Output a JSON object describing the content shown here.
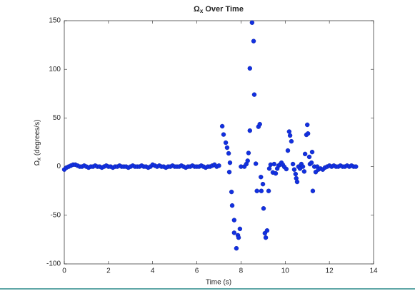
{
  "chart_data": {
    "type": "scatter",
    "title": {
      "symbol": "Ω",
      "sub": "x",
      "rest": " Over Time"
    },
    "xlabel": "Time (s)",
    "ylabel": {
      "symbol": "Ω",
      "sub": "x",
      "rest": " (degrees/s)"
    },
    "xlim": [
      0,
      14
    ],
    "xticks": [
      0,
      2,
      4,
      6,
      8,
      10,
      12,
      14
    ],
    "ylim": [
      -100,
      150
    ],
    "yticks": [
      -100,
      -50,
      0,
      50,
      100,
      150
    ],
    "color": "#1230e0",
    "x": [
      0,
      0.1,
      0.2,
      0.3,
      0.4,
      0.5,
      0.6,
      0.7,
      0.8,
      0.9,
      1.0,
      1.1,
      1.2,
      1.3,
      1.4,
      1.5,
      1.6,
      1.7,
      1.8,
      1.9,
      2.0,
      2.1,
      2.2,
      2.3,
      2.4,
      2.5,
      2.6,
      2.7,
      2.8,
      2.9,
      3.0,
      3.1,
      3.2,
      3.3,
      3.4,
      3.5,
      3.6,
      3.7,
      3.8,
      3.9,
      4.0,
      4.1,
      4.2,
      4.3,
      4.4,
      4.5,
      4.6,
      4.7,
      4.8,
      4.9,
      5.0,
      5.1,
      5.2,
      5.3,
      5.4,
      5.5,
      5.6,
      5.7,
      5.8,
      5.9,
      6.0,
      6.1,
      6.2,
      6.3,
      6.4,
      6.5,
      6.6,
      6.7,
      6.8,
      6.9,
      7.0,
      7.15,
      7.21,
      7.31,
      7.37,
      7.44,
      7.5,
      7.47,
      7.57,
      7.6,
      7.69,
      7.69,
      7.79,
      7.86,
      7.89,
      7.95,
      8.0,
      8.15,
      8.24,
      8.3,
      8.34,
      8.4,
      8.4,
      8.5,
      8.57,
      8.6,
      8.67,
      8.72,
      8.79,
      8.85,
      8.9,
      8.92,
      8.99,
      9.02,
      9.08,
      9.12,
      9.18,
      9.25,
      9.28,
      9.34,
      9.44,
      9.5,
      9.57,
      9.64,
      9.7,
      9.76,
      9.83,
      9.89,
      9.96,
      10.05,
      10.12,
      10.18,
      10.22,
      10.28,
      10.35,
      10.41,
      10.47,
      10.5,
      10.54,
      10.6,
      10.67,
      10.73,
      10.8,
      10.86,
      10.9,
      10.96,
      11.0,
      11.03,
      11.09,
      11.12,
      11.19,
      11.22,
      11.25,
      11.32,
      11.38,
      11.45,
      11.5,
      11.6,
      11.7,
      11.8,
      11.9,
      12.0,
      12.1,
      12.2,
      12.3,
      12.4,
      12.5,
      12.6,
      12.7,
      12.8,
      12.9,
      13.0,
      13.1,
      13.2
    ],
    "series": [
      {
        "values": [
          -3,
          -1,
          0,
          1,
          2,
          2,
          1,
          0,
          0,
          1,
          0,
          -1,
          0,
          0,
          1,
          0,
          0,
          -1,
          0,
          1,
          0,
          0,
          -1,
          0,
          0,
          1,
          0,
          0,
          0,
          -1,
          0,
          1,
          0,
          0,
          0,
          1,
          0,
          0,
          -1,
          0,
          2,
          1,
          0,
          1,
          0,
          0,
          -1,
          0,
          0,
          1,
          0,
          0,
          0,
          1,
          0,
          -1,
          0,
          0,
          1,
          0,
          0,
          0,
          1,
          0,
          -1,
          0,
          0,
          1,
          2,
          0,
          1,
          41.5,
          33,
          24.6,
          19.5,
          13.6,
          4,
          -5.6,
          -26,
          -40,
          -55,
          -68,
          -84,
          -70.6,
          -73,
          -64,
          0,
          0,
          2.6,
          6,
          14,
          37,
          101,
          148,
          129,
          74,
          3,
          -25,
          41,
          43.6,
          -10.7,
          -25,
          -18,
          -43,
          -68.5,
          -73,
          -65.7,
          -25,
          -2,
          2,
          -6,
          2.6,
          -7,
          -2,
          1,
          2,
          4,
          2,
          -0.3,
          -2.5,
          16.5,
          36,
          32,
          26,
          2.6,
          -3,
          -7.6,
          -12,
          -15.7,
          0,
          -2,
          2.6,
          0,
          -5,
          13,
          32.7,
          43,
          34,
          10,
          2.6,
          4,
          15,
          -25,
          0,
          -5.6,
          0,
          -3,
          -2,
          -3,
          -1,
          0,
          1,
          0,
          1,
          0,
          0,
          1,
          0,
          0,
          1,
          0,
          1,
          0,
          0
        ]
      }
    ]
  }
}
